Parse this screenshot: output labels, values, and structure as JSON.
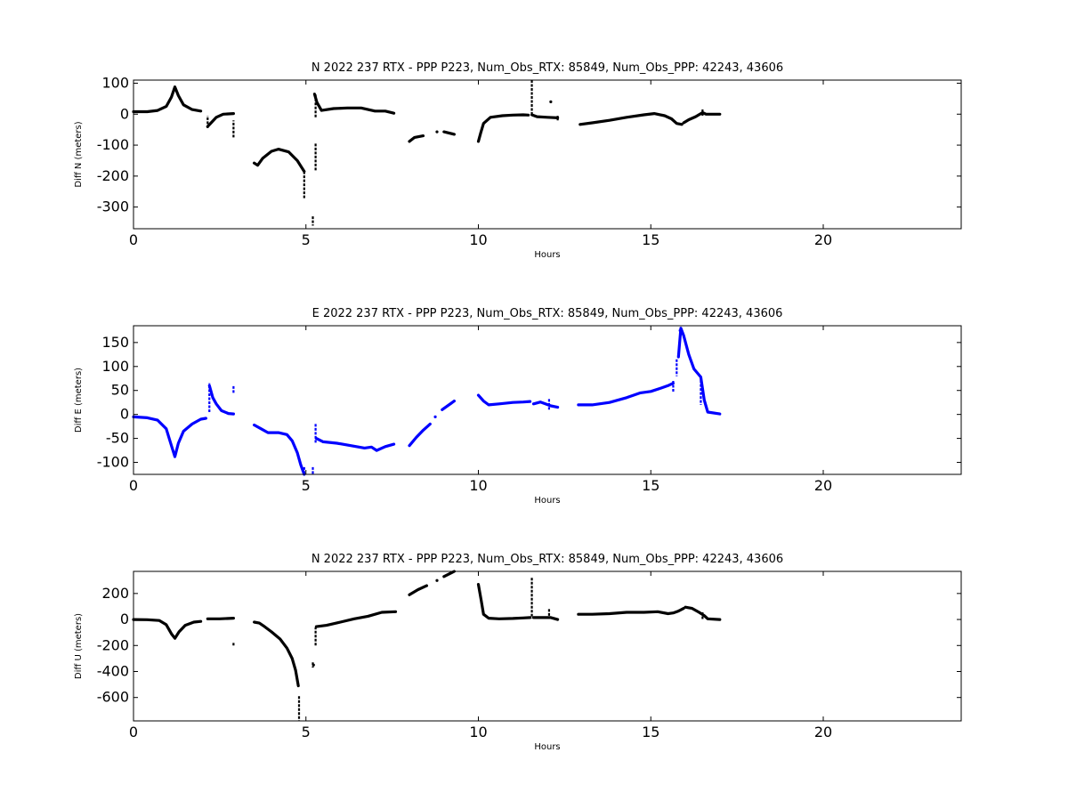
{
  "chart_data": [
    {
      "type": "scatter",
      "title": "N 2022 237 RTX - PPP  P223, Num_Obs_RTX: 85849, Num_Obs_PPP: 42243, 43606",
      "xlabel": "Hours",
      "ylabel": "Diff N (meters)",
      "xlim": [
        0,
        24
      ],
      "ylim": [
        -370,
        110
      ],
      "xticks": [
        0,
        5,
        10,
        15,
        20
      ],
      "yticks": [
        100,
        0,
        -100,
        -200,
        -300
      ],
      "grid": false,
      "color": "#000000",
      "segments": [
        [
          [
            0.0,
            8
          ],
          [
            0.4,
            8
          ],
          [
            0.7,
            12
          ],
          [
            0.95,
            25
          ],
          [
            1.1,
            55
          ],
          [
            1.2,
            88
          ],
          [
            1.3,
            60
          ],
          [
            1.45,
            30
          ],
          [
            1.7,
            15
          ],
          [
            1.95,
            10
          ]
        ],
        [
          [
            2.15,
            -40
          ],
          [
            2.25,
            -28
          ],
          [
            2.4,
            -10
          ],
          [
            2.6,
            0
          ],
          [
            2.9,
            2
          ]
        ],
        [
          [
            3.5,
            -158
          ],
          [
            3.6,
            -165
          ],
          [
            3.75,
            -142
          ],
          [
            4.0,
            -120
          ],
          [
            4.2,
            -113
          ],
          [
            4.5,
            -122
          ],
          [
            4.75,
            -150
          ],
          [
            4.95,
            -185
          ]
        ],
        [
          [
            5.25,
            65
          ],
          [
            5.32,
            38
          ],
          [
            5.45,
            12
          ],
          [
            5.8,
            18
          ],
          [
            6.2,
            20
          ],
          [
            6.6,
            20
          ],
          [
            7.0,
            10
          ],
          [
            7.3,
            10
          ],
          [
            7.55,
            3
          ]
        ],
        [
          [
            8.0,
            -88
          ],
          [
            8.15,
            -75
          ],
          [
            8.4,
            -70
          ]
        ],
        [
          [
            9.0,
            -57
          ],
          [
            9.3,
            -65
          ]
        ],
        [
          [
            10.0,
            -88
          ],
          [
            10.07,
            -60
          ],
          [
            10.15,
            -30
          ],
          [
            10.35,
            -10
          ],
          [
            10.7,
            -5
          ],
          [
            11.0,
            -3
          ],
          [
            11.3,
            -2
          ],
          [
            11.45,
            -3
          ]
        ],
        [
          [
            11.55,
            -2
          ],
          [
            11.7,
            -8
          ],
          [
            12.0,
            -10
          ],
          [
            12.3,
            -12
          ]
        ],
        [
          [
            12.95,
            -33
          ],
          [
            13.3,
            -28
          ],
          [
            13.8,
            -20
          ],
          [
            14.3,
            -10
          ],
          [
            14.8,
            -2
          ],
          [
            15.1,
            2
          ],
          [
            15.4,
            -5
          ],
          [
            15.6,
            -15
          ],
          [
            15.75,
            -30
          ],
          [
            15.9,
            -33
          ]
        ],
        [
          [
            15.95,
            -28
          ],
          [
            16.1,
            -18
          ],
          [
            16.3,
            -8
          ],
          [
            16.5,
            5
          ],
          [
            16.6,
            0
          ],
          [
            17.0,
            0
          ]
        ]
      ],
      "vbars": [
        [
          2.15,
          -45,
          -5
        ],
        [
          2.9,
          -75,
          -20
        ],
        [
          4.95,
          -185,
          -275
        ],
        [
          5.2,
          -330,
          -360
        ],
        [
          5.28,
          -95,
          -185
        ],
        [
          5.28,
          -10,
          65
        ],
        [
          11.55,
          110,
          -5
        ],
        [
          12.3,
          -20,
          -5
        ],
        [
          16.5,
          15,
          -5
        ]
      ],
      "dots": [
        [
          12.1,
          40
        ],
        [
          8.8,
          -57
        ]
      ]
    },
    {
      "type": "scatter",
      "title": "E 2022 237 RTX - PPP  P223, Num_Obs_RTX: 85849, Num_Obs_PPP: 42243, 43606",
      "xlabel": "Hours",
      "ylabel": "Diff E (meters)",
      "xlim": [
        0,
        24
      ],
      "ylim": [
        -125,
        185
      ],
      "xticks": [
        0,
        5,
        10,
        15,
        20
      ],
      "yticks": [
        150,
        100,
        50,
        0,
        -50,
        -100
      ],
      "grid": false,
      "color": "#0000ff",
      "segments": [
        [
          [
            0.0,
            -5
          ],
          [
            0.4,
            -7
          ],
          [
            0.7,
            -12
          ],
          [
            0.95,
            -30
          ],
          [
            1.1,
            -65
          ],
          [
            1.2,
            -88
          ],
          [
            1.3,
            -60
          ],
          [
            1.45,
            -35
          ],
          [
            1.7,
            -20
          ],
          [
            1.95,
            -10
          ],
          [
            2.1,
            -8
          ]
        ],
        [
          [
            2.2,
            60
          ],
          [
            2.3,
            35
          ],
          [
            2.4,
            22
          ],
          [
            2.55,
            8
          ],
          [
            2.75,
            2
          ],
          [
            2.9,
            1
          ]
        ],
        [
          [
            3.5,
            -22
          ],
          [
            3.7,
            -30
          ],
          [
            3.9,
            -38
          ],
          [
            4.2,
            -38
          ],
          [
            4.45,
            -42
          ],
          [
            4.6,
            -55
          ],
          [
            4.75,
            -80
          ],
          [
            4.85,
            -105
          ],
          [
            4.95,
            -125
          ]
        ],
        [
          [
            5.3,
            -50
          ],
          [
            5.5,
            -57
          ],
          [
            5.9,
            -60
          ],
          [
            6.3,
            -65
          ],
          [
            6.7,
            -70
          ],
          [
            6.9,
            -68
          ],
          [
            7.05,
            -75
          ],
          [
            7.3,
            -67
          ],
          [
            7.55,
            -62
          ]
        ],
        [
          [
            8.0,
            -65
          ],
          [
            8.2,
            -48
          ],
          [
            8.4,
            -33
          ],
          [
            8.6,
            -20
          ]
        ],
        [
          [
            8.95,
            10
          ],
          [
            9.3,
            28
          ]
        ],
        [
          [
            10.0,
            40
          ],
          [
            10.15,
            28
          ],
          [
            10.3,
            20
          ],
          [
            10.6,
            22
          ],
          [
            11.0,
            25
          ],
          [
            11.3,
            26
          ],
          [
            11.5,
            27
          ]
        ],
        [
          [
            11.6,
            22
          ],
          [
            11.8,
            26
          ],
          [
            12.1,
            18
          ],
          [
            12.3,
            15
          ]
        ],
        [
          [
            12.9,
            20
          ],
          [
            13.3,
            20
          ],
          [
            13.8,
            25
          ],
          [
            14.3,
            35
          ],
          [
            14.7,
            45
          ],
          [
            15.0,
            48
          ],
          [
            15.3,
            55
          ],
          [
            15.5,
            60
          ],
          [
            15.65,
            65
          ]
        ],
        [
          [
            15.8,
            120
          ],
          [
            15.87,
            180
          ],
          [
            15.95,
            165
          ],
          [
            16.1,
            125
          ],
          [
            16.25,
            95
          ],
          [
            16.45,
            78
          ],
          [
            16.55,
            30
          ],
          [
            16.65,
            5
          ],
          [
            17.0,
            1
          ]
        ]
      ],
      "vbars": [
        [
          2.2,
          5,
          65
        ],
        [
          2.9,
          45,
          60
        ],
        [
          4.95,
          -110,
          -125
        ],
        [
          5.2,
          -110,
          -125
        ],
        [
          5.28,
          -20,
          -60
        ],
        [
          15.65,
          70,
          45
        ],
        [
          15.75,
          115,
          80
        ],
        [
          16.45,
          80,
          20
        ],
        [
          12.05,
          32,
          10
        ]
      ],
      "dots": [
        [
          8.75,
          -5
        ],
        [
          15.85,
          175
        ]
      ]
    },
    {
      "type": "scatter",
      "title": "N 2022 237 RTX - PPP  P223, Num_Obs_RTX: 85849, Num_Obs_PPP: 42243, 43606",
      "xlabel": "Hours",
      "ylabel": "Diff U (meters)",
      "xlim": [
        0,
        24
      ],
      "ylim": [
        -780,
        370
      ],
      "xticks": [
        0,
        5,
        10,
        15,
        20
      ],
      "yticks": [
        200,
        0,
        -200,
        -400,
        -600
      ],
      "grid": false,
      "color": "#000000",
      "segments": [
        [
          [
            0.0,
            0
          ],
          [
            0.4,
            -2
          ],
          [
            0.75,
            -8
          ],
          [
            0.95,
            -40
          ],
          [
            1.1,
            -110
          ],
          [
            1.2,
            -145
          ],
          [
            1.32,
            -95
          ],
          [
            1.5,
            -45
          ],
          [
            1.75,
            -20
          ],
          [
            1.95,
            -15
          ]
        ],
        [
          [
            2.15,
            5
          ],
          [
            2.5,
            5
          ],
          [
            2.9,
            10
          ]
        ],
        [
          [
            3.5,
            -20
          ],
          [
            3.65,
            -28
          ],
          [
            3.8,
            -55
          ],
          [
            4.0,
            -95
          ],
          [
            4.25,
            -150
          ],
          [
            4.45,
            -220
          ],
          [
            4.6,
            -300
          ],
          [
            4.7,
            -390
          ],
          [
            4.78,
            -510
          ]
        ],
        [
          [
            5.3,
            -55
          ],
          [
            5.6,
            -45
          ],
          [
            6.0,
            -20
          ],
          [
            6.4,
            5
          ],
          [
            6.8,
            25
          ],
          [
            7.2,
            55
          ],
          [
            7.6,
            60
          ]
        ],
        [
          [
            8.0,
            190
          ],
          [
            8.25,
            230
          ],
          [
            8.5,
            260
          ]
        ],
        [
          [
            9.0,
            330
          ],
          [
            9.3,
            370
          ]
        ],
        [
          [
            10.0,
            270
          ],
          [
            10.08,
            150
          ],
          [
            10.15,
            40
          ],
          [
            10.3,
            10
          ],
          [
            10.6,
            5
          ],
          [
            11.0,
            8
          ],
          [
            11.3,
            12
          ],
          [
            11.5,
            15
          ]
        ],
        [
          [
            11.6,
            15
          ],
          [
            11.8,
            15
          ],
          [
            12.1,
            15
          ],
          [
            12.3,
            0
          ]
        ],
        [
          [
            12.9,
            40
          ],
          [
            13.3,
            40
          ],
          [
            13.8,
            45
          ],
          [
            14.3,
            55
          ],
          [
            14.8,
            55
          ],
          [
            15.2,
            60
          ],
          [
            15.5,
            45
          ],
          [
            15.65,
            50
          ],
          [
            15.8,
            65
          ],
          [
            15.95,
            85
          ]
        ],
        [
          [
            16.0,
            95
          ],
          [
            16.2,
            85
          ],
          [
            16.4,
            55
          ],
          [
            16.55,
            30
          ],
          [
            16.65,
            5
          ],
          [
            17.0,
            0
          ]
        ]
      ],
      "vbars": [
        [
          2.9,
          -180,
          -200
        ],
        [
          4.8,
          -590,
          -780
        ],
        [
          5.2,
          -330,
          -370
        ],
        [
          5.28,
          -200,
          -60
        ],
        [
          11.55,
          320,
          10
        ],
        [
          12.05,
          80,
          10
        ],
        [
          16.5,
          55,
          0
        ]
      ],
      "dots": [
        [
          8.8,
          300
        ],
        [
          5.22,
          -350
        ]
      ]
    }
  ]
}
